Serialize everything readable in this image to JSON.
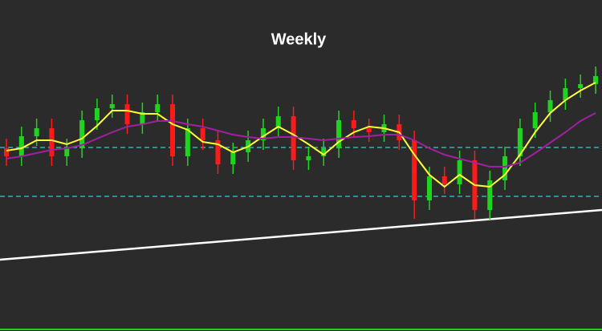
{
  "chart_data": {
    "type": "candlestick",
    "title": "Weekly",
    "ylim": [
      0,
      413
    ],
    "up_color": "#1fd41f",
    "down_color": "#ff1a1a",
    "open": [
      228,
      218,
      243,
      253,
      218,
      228,
      263,
      278,
      283,
      258,
      273,
      283,
      218,
      253,
      238,
      208,
      223,
      238,
      253,
      268,
      213,
      218,
      228,
      263,
      253,
      248,
      258,
      238,
      163,
      193,
      183,
      213,
      151,
      188,
      218,
      253,
      273,
      288,
      303,
      308
    ],
    "high": [
      240,
      255,
      265,
      265,
      240,
      275,
      290,
      295,
      295,
      285,
      295,
      295,
      265,
      265,
      250,
      235,
      250,
      265,
      280,
      280,
      230,
      240,
      275,
      275,
      265,
      270,
      270,
      250,
      205,
      205,
      225,
      225,
      200,
      230,
      265,
      285,
      300,
      315,
      320,
      330
    ],
    "low": [
      206,
      206,
      231,
      206,
      206,
      216,
      251,
      266,
      246,
      246,
      261,
      206,
      206,
      226,
      196,
      196,
      211,
      226,
      241,
      201,
      201,
      206,
      216,
      241,
      236,
      236,
      226,
      140,
      151,
      171,
      171,
      139,
      139,
      176,
      206,
      241,
      261,
      276,
      291,
      296
    ],
    "close": [
      218,
      243,
      253,
      218,
      228,
      263,
      278,
      283,
      258,
      273,
      283,
      218,
      253,
      238,
      208,
      223,
      238,
      253,
      268,
      213,
      218,
      228,
      263,
      253,
      248,
      258,
      238,
      163,
      193,
      183,
      213,
      151,
      188,
      218,
      253,
      273,
      288,
      303,
      308,
      318
    ],
    "series": [
      {
        "color": "#ffff33",
        "values": [
          225,
          228,
          238,
          238,
          233,
          240,
          256,
          275,
          275,
          271,
          271,
          258,
          251,
          236,
          233,
          223,
          230,
          243,
          255,
          245,
          233,
          220,
          236,
          248,
          255,
          253,
          248,
          220,
          195,
          180,
          195,
          182,
          180,
          195,
          220,
          248,
          272,
          288,
          300,
          310
        ]
      },
      {
        "color": "#a020a0",
        "values": [
          215,
          218,
          222,
          226,
          228,
          232,
          240,
          248,
          255,
          258,
          262,
          262,
          258,
          255,
          250,
          245,
          242,
          240,
          242,
          242,
          240,
          238,
          240,
          242,
          243,
          245,
          245,
          238,
          228,
          220,
          215,
          210,
          205,
          205,
          210,
          222,
          235,
          248,
          262,
          272
        ]
      }
    ],
    "levels": [
      229,
      168
    ],
    "level_color": "#33cccc",
    "trendline": [
      89,
      151
    ],
    "trendline_color": "#ffffff"
  }
}
